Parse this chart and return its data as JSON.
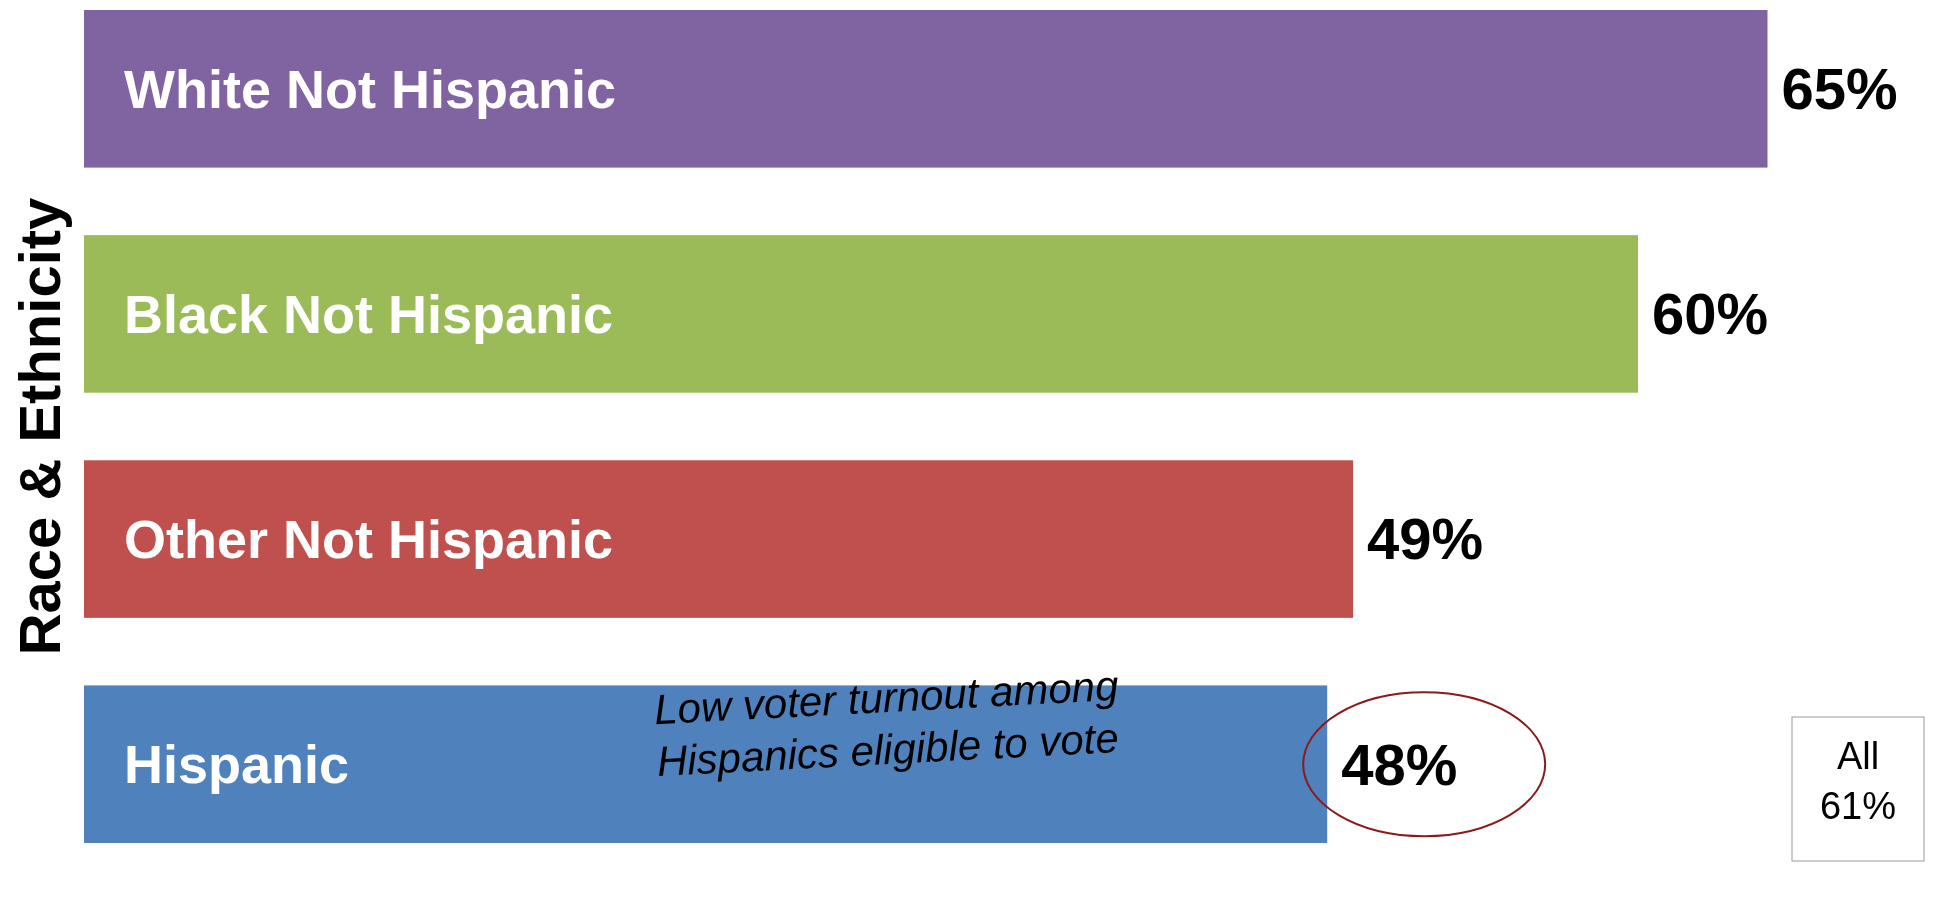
{
  "chart_data": {
    "type": "bar",
    "orientation": "horizontal",
    "ylabel": "Race & Ethnicity",
    "categories": [
      "White Not Hispanic",
      "Black Not Hispanic",
      "Other Not Hispanic",
      "Hispanic"
    ],
    "values": [
      65,
      60,
      49,
      48
    ],
    "colors": [
      "#8064a2",
      "#9bbb59",
      "#c0504d",
      "#4f81bd"
    ],
    "value_labels": [
      "65%",
      "60%",
      "49%",
      "48%"
    ],
    "annotations": [
      "Low voter turnout among Hispanics eligible to vote",
      "All 61%"
    ]
  }
}
